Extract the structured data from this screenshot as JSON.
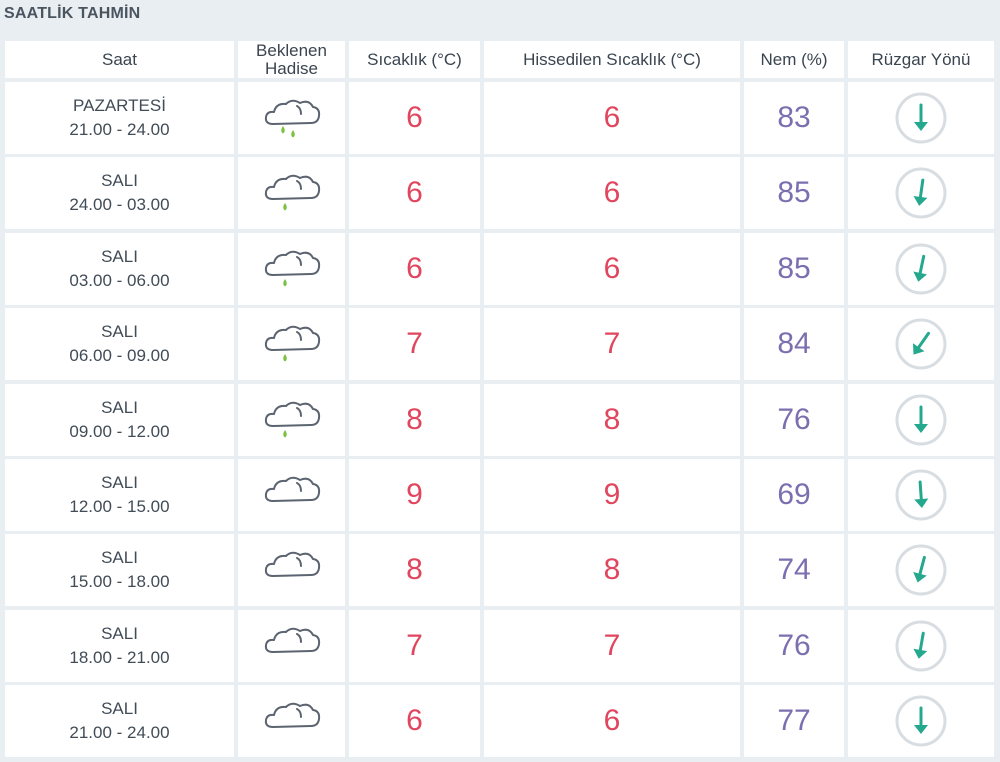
{
  "title": "SAATLİK TAHMİN",
  "headers": {
    "saat": "Saat",
    "hadise_line1": "Beklenen",
    "hadise_line2": "Hadise",
    "sicaklik": "Sıcaklık (°C)",
    "hissedilen": "Hissedilen Sıcaklık (°C)",
    "nem": "Nem (%)",
    "ruzgar": "Rüzgar Yönü"
  },
  "colors": {
    "temperature": "#e0465e",
    "humidity": "#7c6fb0",
    "wind_arrow": "#24a88e",
    "rain_drop": "#7cc142",
    "cloud_outline": "#5b6470"
  },
  "rows": [
    {
      "day": "PAZARTESİ",
      "time": "21.00 - 24.00",
      "hadise_icon": "cloud-rain-two-drops-icon",
      "sicaklik": "6",
      "hissedilen": "6",
      "nem": "83",
      "wind_deg": 0
    },
    {
      "day": "SALI",
      "time": "24.00 - 03.00",
      "hadise_icon": "cloud-rain-icon",
      "sicaklik": "6",
      "hissedilen": "6",
      "nem": "85",
      "wind_deg": 8
    },
    {
      "day": "SALI",
      "time": "03.00 - 06.00",
      "hadise_icon": "cloud-rain-icon",
      "sicaklik": "6",
      "hissedilen": "6",
      "nem": "85",
      "wind_deg": 12
    },
    {
      "day": "SALI",
      "time": "06.00 - 09.00",
      "hadise_icon": "cloud-rain-icon",
      "sicaklik": "7",
      "hissedilen": "7",
      "nem": "84",
      "wind_deg": 35
    },
    {
      "day": "SALI",
      "time": "09.00 - 12.00",
      "hadise_icon": "cloud-rain-icon",
      "sicaklik": "8",
      "hissedilen": "8",
      "nem": "76",
      "wind_deg": 0
    },
    {
      "day": "SALI",
      "time": "12.00 - 15.00",
      "hadise_icon": "cloud-icon",
      "sicaklik": "9",
      "hissedilen": "9",
      "nem": "69",
      "wind_deg": -4
    },
    {
      "day": "SALI",
      "time": "15.00 - 18.00",
      "hadise_icon": "cloud-icon",
      "sicaklik": "8",
      "hissedilen": "8",
      "nem": "74",
      "wind_deg": 15
    },
    {
      "day": "SALI",
      "time": "18.00 - 21.00",
      "hadise_icon": "cloud-icon",
      "sicaklik": "7",
      "hissedilen": "7",
      "nem": "76",
      "wind_deg": 10
    },
    {
      "day": "SALI",
      "time": "21.00 - 24.00",
      "hadise_icon": "cloud-icon",
      "sicaklik": "6",
      "hissedilen": "6",
      "nem": "77",
      "wind_deg": 0
    }
  ]
}
